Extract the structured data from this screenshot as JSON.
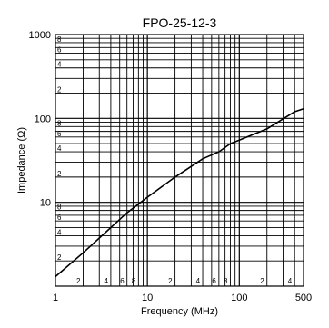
{
  "chart_data": {
    "type": "line",
    "title": "FPO-25-12-3",
    "xlabel": "Frequency (MHz)",
    "ylabel": "Impedance (Ω)",
    "x_scale": "log",
    "y_scale": "log",
    "xlim": [
      1,
      500
    ],
    "ylim": [
      1,
      1000
    ],
    "grid": true,
    "x_major_tick_labels": [
      "1",
      "10",
      "100",
      "500"
    ],
    "y_major_tick_labels": [
      "10",
      "100",
      "1000"
    ],
    "x_minor_tick_labels": [
      "2",
      "4",
      "6",
      "8",
      "2",
      "4",
      "6",
      "8",
      "2",
      "4"
    ],
    "y_minor_tick_labels": [
      "2",
      "4",
      "6",
      "8",
      "2",
      "4",
      "6",
      "8",
      "2",
      "4",
      "6",
      "8"
    ],
    "series": [
      {
        "x": [
          1,
          2,
          4,
          6,
          10,
          20,
          40,
          60,
          80,
          100,
          200,
          400,
          500
        ],
        "y": [
          1.3,
          2.5,
          5.0,
          7.5,
          11.5,
          20,
          33,
          40,
          50,
          55,
          75,
          120,
          130
        ]
      }
    ]
  }
}
